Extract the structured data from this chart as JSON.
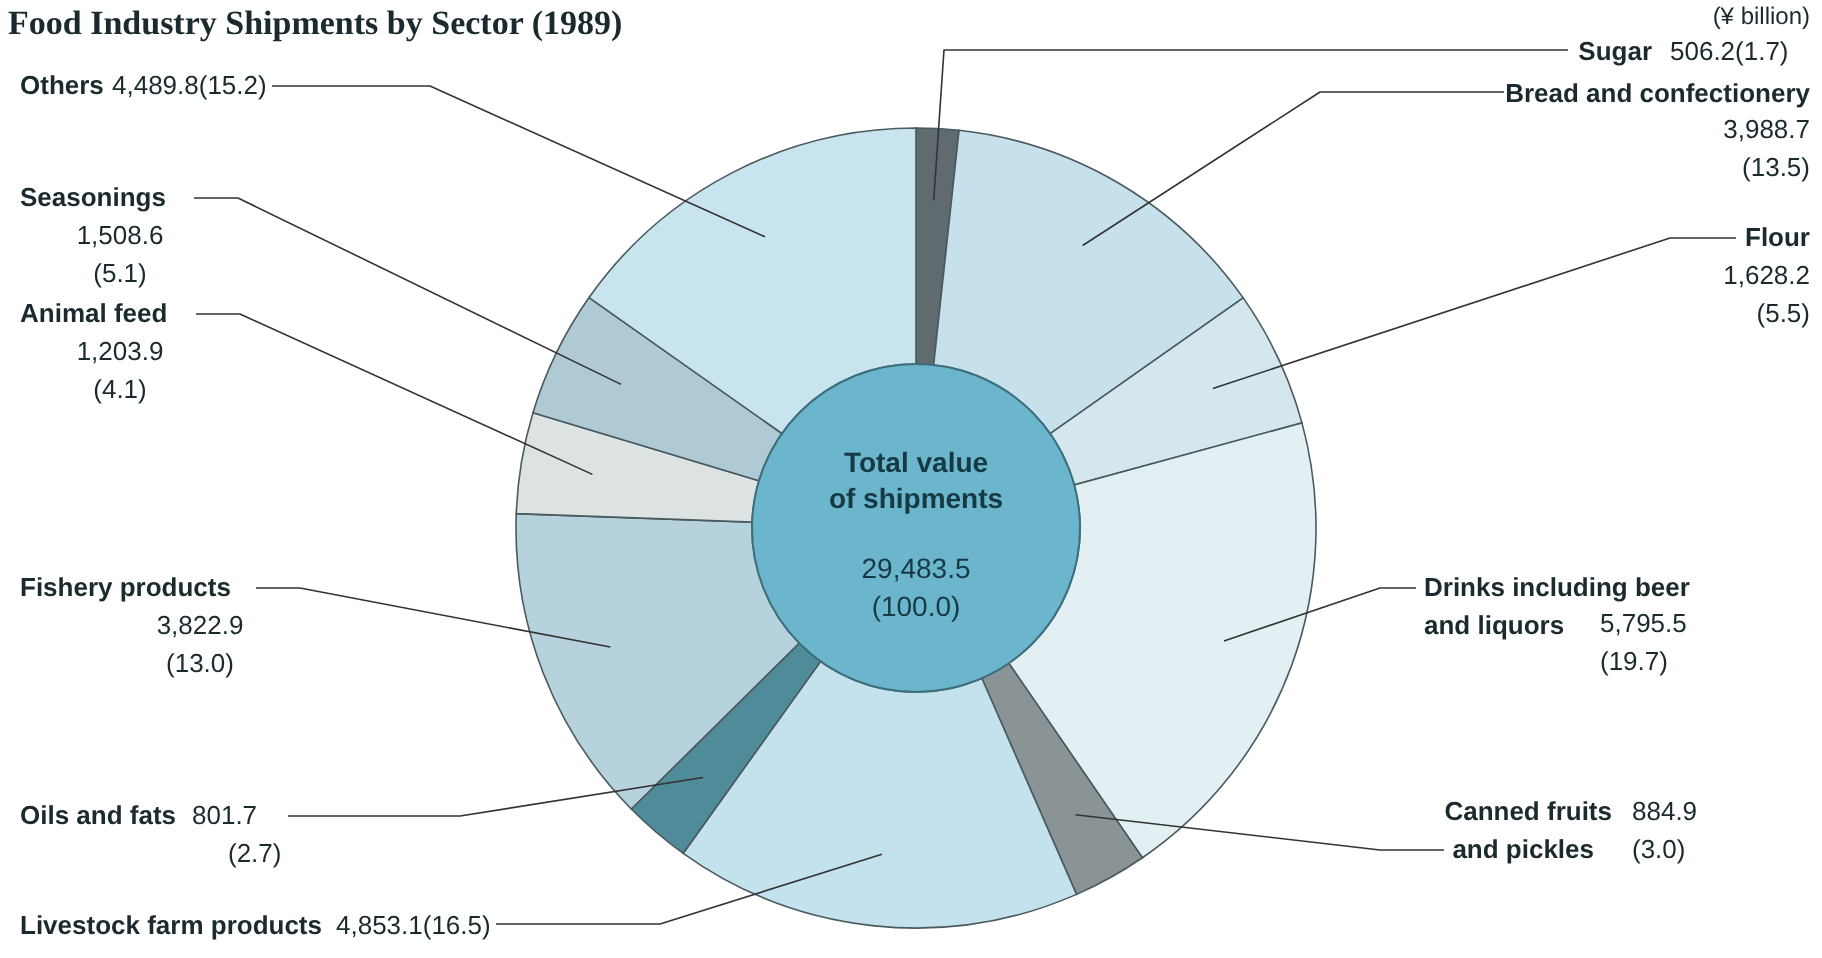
{
  "chart_data": {
    "type": "donut",
    "title": "Food Industry Shipments by Sector (1989)",
    "categories": [
      "Sugar",
      "Bread and confectionery",
      "Flour",
      "Drinks including beer and liquors",
      "Canned fruits and pickles",
      "Livestock farm products",
      "Oils and fats",
      "Fishery products",
      "Animal feed",
      "Seasonings",
      "Others"
    ],
    "values": [
      506.2,
      3988.7,
      1628.2,
      5795.5,
      884.9,
      4853.1,
      801.7,
      3822.9,
      1203.9,
      1508.6,
      4489.8
    ],
    "value_labels": [
      "506.2(1.7)",
      "3,988.7(13.5)",
      "1,628.2(5.5)",
      "5,795.5(19.7)",
      "884.9(3.0)",
      "4,853.1(16.5)",
      "801.7(2.7)",
      "3,822.9(13.0)",
      "1,203.9(4.1)",
      "1,508.6(5.1)",
      "4,489.8(15.2)"
    ],
    "colors": [
      "#5f6b6e",
      "#c6e1eb",
      "#d4e7ee",
      "#e2eff3",
      "#8a9496",
      "#c4e2ed",
      "#4f8b99",
      "#b6d2dc",
      "#dde3e3",
      "#afcad4",
      "#c8e4ee"
    ],
    "annotations": [
      "(¥ billion)",
      "Total value of shipments",
      "29,483.5",
      "(100.0)"
    ]
  }
}
